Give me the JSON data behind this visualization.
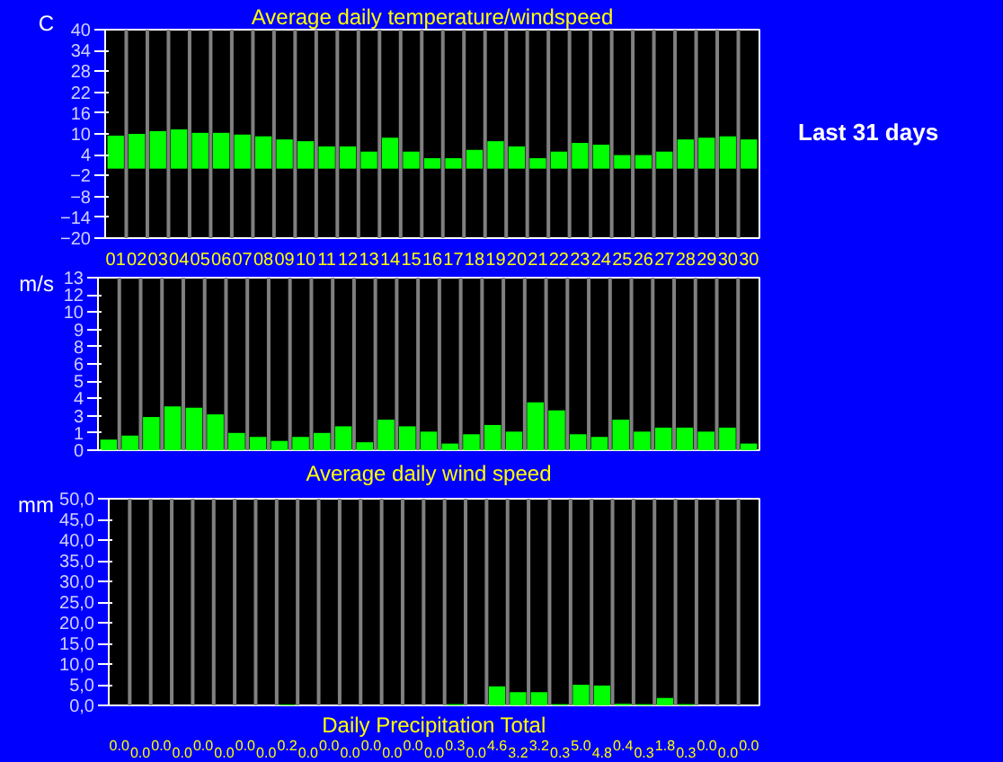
{
  "chart_data": [
    {
      "type": "bar",
      "title": "Average daily temperature/windspeed",
      "ylabel": "C",
      "annotations": [
        "Last 31 days"
      ],
      "categories": [
        "01",
        "02",
        "03",
        "04",
        "05",
        "06",
        "07",
        "08",
        "09",
        "10",
        "11",
        "12",
        "13",
        "14",
        "15",
        "16",
        "17",
        "18",
        "19",
        "20",
        "21",
        "22",
        "23",
        "24",
        "25",
        "26",
        "27",
        "28",
        "29",
        "30",
        "30"
      ],
      "values": [
        9.5,
        10.0,
        10.8,
        11.3,
        10.3,
        10.3,
        9.8,
        9.3,
        8.4,
        7.9,
        6.4,
        6.4,
        4.9,
        8.9,
        4.9,
        3.0,
        3.0,
        5.4,
        7.9,
        6.4,
        3.0,
        4.9,
        7.4,
        6.9,
        3.9,
        3.9,
        4.9,
        8.4,
        8.9,
        9.3,
        8.4
      ],
      "color": "#00ff00",
      "ylim": [
        -20,
        40
      ],
      "yticks": [
        -20,
        -14,
        -8,
        -2,
        4,
        10,
        16,
        22,
        28,
        34,
        40
      ],
      "grid": "x"
    },
    {
      "type": "bar",
      "xlabel": "Average daily wind speed",
      "ylabel": "m/s",
      "categories": [
        null,
        null,
        null,
        null,
        null,
        null,
        null,
        null,
        null,
        null,
        null,
        null,
        null,
        null,
        null,
        null,
        null,
        null,
        null,
        null,
        null,
        null,
        null,
        null,
        null,
        null,
        null,
        null,
        null,
        null,
        null
      ],
      "values": [
        0.8,
        1.1,
        2.5,
        3.3,
        3.2,
        2.7,
        1.3,
        1.0,
        0.7,
        1.0,
        1.3,
        1.8,
        0.6,
        2.3,
        1.8,
        1.4,
        0.5,
        1.2,
        1.9,
        1.4,
        3.6,
        3.0,
        1.2,
        1.0,
        2.3,
        1.4,
        1.7,
        1.7,
        1.4,
        1.7,
        0.5
      ],
      "color": "#00ff00",
      "ylim": [
        0,
        13
      ],
      "yticks": [
        0,
        {
          "value": 1.3,
          "label": "1"
        },
        {
          "value": 2.6,
          "label": "3"
        },
        {
          "value": 3.9,
          "label": "4"
        },
        {
          "value": 5.2,
          "label": "5"
        },
        {
          "value": 6.5,
          "label": "6"
        },
        {
          "value": 7.8,
          "label": "8"
        },
        {
          "value": 9.1,
          "label": "9"
        },
        {
          "value": 10.4,
          "label": "10"
        },
        {
          "value": 11.7,
          "label": "12"
        },
        13
      ],
      "tick_labels": "y",
      "grid": "x"
    },
    {
      "type": "bar",
      "xlabel": "Daily Precipitation Total",
      "ylabel": "mm",
      "categories": [
        null,
        null,
        null,
        null,
        null,
        null,
        null,
        null,
        null,
        null,
        null,
        null,
        null,
        null,
        null,
        null,
        null,
        null,
        null,
        null,
        null,
        null,
        null,
        null,
        null,
        null,
        null,
        null,
        null,
        null,
        null
      ],
      "values": [
        0,
        0,
        0,
        0,
        0,
        0,
        0,
        0,
        0.2,
        0,
        0,
        0,
        0,
        0,
        0,
        0,
        0.3,
        0,
        4.6,
        3.2,
        3.2,
        0.3,
        5.0,
        4.8,
        0.4,
        0.3,
        1.8,
        0.3,
        0,
        0,
        0
      ],
      "value_labels": [
        "0.0",
        "0.0",
        "0.0",
        "0.0",
        "0.0",
        "0.0",
        "0.0",
        "0.0",
        "0.2",
        "0.0",
        "0.0",
        "0.0",
        "0.0",
        "0.0",
        "0.0",
        "0.0",
        "0.3",
        "0.0",
        "4.6",
        "3.2",
        "3.2",
        "0.3",
        "5.0",
        "4.8",
        "0.4",
        "0.3",
        "1.8",
        "0.3",
        "0.0",
        "0.0",
        "0.0"
      ],
      "color": "#00ff00",
      "ylim": [
        0,
        50
      ],
      "yticks": [
        {
          "value": 0,
          "label": "0,0"
        },
        {
          "value": 5,
          "label": "5,0"
        },
        {
          "value": 10,
          "label": "10,0"
        },
        {
          "value": 15,
          "label": "15,0"
        },
        {
          "value": 20,
          "label": "20,0"
        },
        {
          "value": 25,
          "label": "25,0"
        },
        {
          "value": 30,
          "label": "30,0"
        },
        {
          "value": 35,
          "label": "35,0"
        },
        {
          "value": 40,
          "label": "40,0"
        },
        {
          "value": 45,
          "label": "45,0"
        },
        {
          "value": 50,
          "label": "50,0"
        }
      ],
      "tick_labels": "y",
      "grid": "x"
    }
  ]
}
